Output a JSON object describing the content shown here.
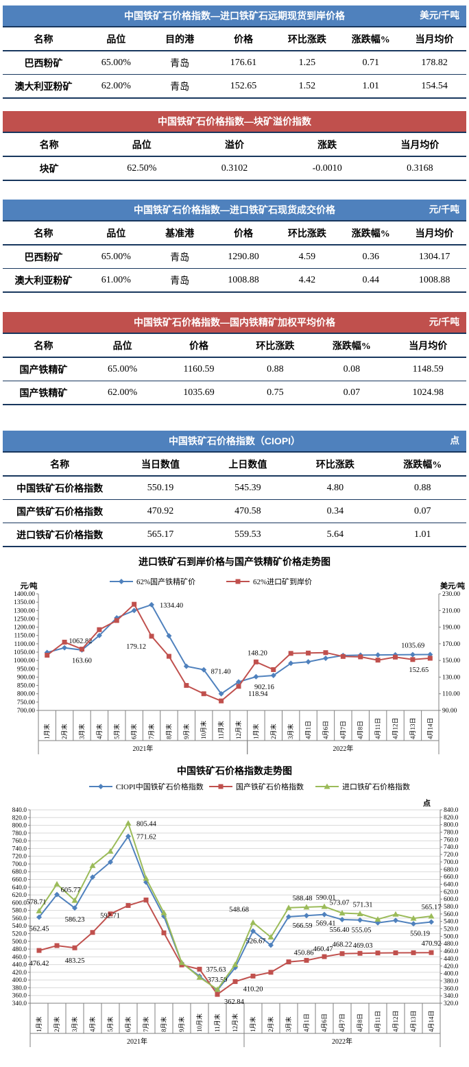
{
  "colors": {
    "header_blue": "#4F81BD",
    "header_red": "#C0504D",
    "table_border_navy": "#17365D",
    "series_blue": "#4F81BD",
    "series_red": "#C0504D",
    "series_green": "#9BBB59",
    "axis_gray": "#7f7f7f",
    "grid_gray": "#d9d9d9"
  },
  "tables": [
    {
      "id": "t1",
      "theme": "blue",
      "cols_class": "cols-7",
      "title": "中国铁矿石价格指数—进口铁矿石远期现货到岸价格",
      "unit": "美元/千吨",
      "columns": [
        "名称",
        "品位",
        "目的港",
        "价格",
        "环比涨跌",
        "涨跌幅%",
        "当月均价"
      ],
      "rows": [
        [
          "巴西粉矿",
          "65.00%",
          "青岛",
          "176.61",
          "1.25",
          "0.71",
          "178.82"
        ],
        [
          "澳大利亚粉矿",
          "62.00%",
          "青岛",
          "152.65",
          "1.52",
          "1.01",
          "154.54"
        ]
      ]
    },
    {
      "id": "t2",
      "theme": "red",
      "cols_class": "cols-5",
      "title": "中国铁矿石价格指数—块矿溢价指数",
      "unit": "",
      "columns": [
        "名称",
        "品位",
        "溢价",
        "涨跌",
        "当月均价"
      ],
      "rows": [
        [
          "块矿",
          "62.50%",
          "0.3102",
          "-0.0010",
          "0.3168"
        ]
      ]
    },
    {
      "id": "t3",
      "theme": "blue",
      "cols_class": "cols-7",
      "title": "中国铁矿石价格指数—进口铁矿石现货成交价格",
      "unit": "元/千吨",
      "columns": [
        "名称",
        "品位",
        "基准港",
        "价格",
        "环比涨跌",
        "涨跌幅%",
        "当月均价"
      ],
      "rows": [
        [
          "巴西粉矿",
          "65.00%",
          "青岛",
          "1290.80",
          "4.59",
          "0.36",
          "1304.17"
        ],
        [
          "澳大利亚粉矿",
          "61.00%",
          "青岛",
          "1008.88",
          "4.42",
          "0.44",
          "1008.88"
        ]
      ]
    },
    {
      "id": "t4",
      "theme": "red",
      "cols_class": "cols-6",
      "title": "中国铁矿石价格指数—国内铁精矿加权平均价格",
      "unit": "元/千吨",
      "columns": [
        "名称",
        "品位",
        "价格",
        "环比涨跌",
        "涨跌幅%",
        "当月均价"
      ],
      "rows": [
        [
          "国产铁精矿",
          "65.00%",
          "1160.59",
          "0.88",
          "0.08",
          "1148.59"
        ],
        [
          "国产铁精矿",
          "62.00%",
          "1035.69",
          "0.75",
          "0.07",
          "1024.98"
        ]
      ]
    },
    {
      "id": "t5",
      "theme": "blue",
      "cols_class": "cols-5w",
      "title": "中国铁矿石价格指数（CIOPI）",
      "unit": "点",
      "columns": [
        "名称",
        "当日数值",
        "上日数值",
        "环比涨跌",
        "涨跌幅%"
      ],
      "rows": [
        [
          "中国铁矿石价格指数",
          "550.19",
          "545.39",
          "4.80",
          "0.88"
        ],
        [
          "国产铁矿石价格指数",
          "470.92",
          "470.58",
          "0.34",
          "0.07"
        ],
        [
          "进口铁矿石价格指数",
          "565.17",
          "559.53",
          "5.64",
          "1.01"
        ]
      ]
    }
  ],
  "chart_data": [
    {
      "type": "line",
      "name": "import-vs-domestic-trend",
      "title": "进口铁矿石到岸价格与国产铁精矿价格走势图",
      "grid": false,
      "left_axis": {
        "label": "元/吨",
        "min": 700,
        "max": 1400,
        "step": 50,
        "decimals": 2
      },
      "right_axis": {
        "label": "美元/吨",
        "min": 90,
        "max": 230,
        "step": 20,
        "decimals": 2
      },
      "categories": [
        "1月末",
        "2月末",
        "3月末",
        "4月末",
        "5月末",
        "6月末",
        "7月末",
        "8月末",
        "9月末",
        "10月末",
        "11月末",
        "12月末",
        "1月末",
        "2月末",
        "3月末",
        "4月1日",
        "4月6日",
        "4月7日",
        "4月8日",
        "4月11日",
        "4月12日",
        "4月13日",
        "4月14日"
      ],
      "year_groups": [
        {
          "label": "2021年",
          "from": 0,
          "to": 11
        },
        {
          "label": "2022年",
          "from": 12,
          "to": 22
        }
      ],
      "series": [
        {
          "name": "62%国产铁精矿价",
          "axis": "left",
          "color": "#4F81BD",
          "label_color": "#4a90d9",
          "marker": "diamond",
          "values": [
            1048,
            1076,
            1062.82,
            1150,
            1256,
            1300,
            1334.4,
            1148,
            965,
            944,
            800,
            871.4,
            902.16,
            910,
            983,
            992,
            1013,
            1030,
            1032,
            1033,
            1034,
            1035,
            1035.69
          ],
          "point_labels": [
            {
              "i": 2,
              "text": "1062.82",
              "dx": -2,
              "dy": -10
            },
            {
              "i": 6,
              "text": "1334.40",
              "dx": 12,
              "dy": 4,
              "anchor": "start"
            },
            {
              "i": 11,
              "text": "871.40",
              "dx": -26,
              "dy": -12
            },
            {
              "i": 12,
              "text": "902.16",
              "dx": 12,
              "dy": 18
            },
            {
              "i": 22,
              "text": "1035.69",
              "dx": -8,
              "dy": -10,
              "anchor": "end"
            }
          ]
        },
        {
          "name": "62%进口矿到岸价",
          "axis": "right",
          "color": "#C0504D",
          "label_color": "#C0504D",
          "marker": "square",
          "values": [
            156.3,
            172,
            163.6,
            187,
            198,
            217.5,
            179.12,
            155,
            120,
            110,
            101.4,
            118.94,
            148.2,
            139,
            158.5,
            158.9,
            159.4,
            154.8,
            154.3,
            150.4,
            154,
            151.1,
            152.65
          ],
          "point_labels": [
            {
              "i": 2,
              "text": "163.60",
              "dx": 0,
              "dy": 20
            },
            {
              "i": 6,
              "text": "179.12",
              "dx": -8,
              "dy": 18,
              "anchor": "end"
            },
            {
              "i": 11,
              "text": "118.94",
              "dx": 14,
              "dy": 14,
              "anchor": "start"
            },
            {
              "i": 12,
              "text": "148.20",
              "dx": 2,
              "dy": -10
            },
            {
              "i": 22,
              "text": "152.65",
              "dx": -2,
              "dy": 20,
              "anchor": "end"
            }
          ]
        }
      ]
    },
    {
      "type": "line",
      "name": "ciopi-index-trend",
      "title": "中国铁矿石价格指数走势图",
      "point_label": "点",
      "grid": true,
      "left_axis": {
        "label": "",
        "min": 340,
        "max": 840,
        "step": 20,
        "decimals": 1
      },
      "right_axis": {
        "label": "",
        "min": 320,
        "max": 840,
        "step": 20,
        "decimals": 1
      },
      "categories": [
        "1月末",
        "2月末",
        "3月末",
        "4月末",
        "5月末",
        "6月末",
        "7月末",
        "8月末",
        "9月末",
        "10月末",
        "11月末",
        "12月末",
        "1月末",
        "2月末",
        "3月末",
        "4月1日",
        "4月6日",
        "4月7日",
        "4月8日",
        "4月11日",
        "4月12日",
        "4月13日",
        "4月14日"
      ],
      "year_groups": [
        {
          "label": "2021年",
          "from": 0,
          "to": 11
        },
        {
          "label": "2022年",
          "from": 12,
          "to": 22
        }
      ],
      "series": [
        {
          "name": "CIOPI中国铁矿石价格指数",
          "axis": "left",
          "color": "#4F81BD",
          "label_color": "#4a90d9",
          "marker": "diamond",
          "values": [
            562.45,
            621,
            586.23,
            666,
            705,
            771.62,
            653,
            565,
            444,
            410,
            373.59,
            432,
            526.67,
            490,
            563.5,
            566.59,
            569.41,
            556.4,
            555.05,
            548,
            554,
            545.39,
            550.19
          ],
          "point_labels": [
            {
              "i": 0,
              "text": "562.45",
              "dx": 0,
              "dy": 20
            },
            {
              "i": 2,
              "text": "586.23",
              "dx": 0,
              "dy": 20
            },
            {
              "i": 5,
              "text": "771.62",
              "dx": 12,
              "dy": 4,
              "anchor": "start"
            },
            {
              "i": 10,
              "text": "373.59",
              "dx": 0,
              "dy": -12
            },
            {
              "i": 12,
              "text": "526.67",
              "dx": 4,
              "dy": 18
            },
            {
              "i": 15,
              "text": "566.59",
              "dx": -6,
              "dy": 18
            },
            {
              "i": 16,
              "text": "569.41",
              "dx": 2,
              "dy": 16
            },
            {
              "i": 17,
              "text": "556.40",
              "dx": -4,
              "dy": 18
            },
            {
              "i": 18,
              "text": "555.05",
              "dx": 2,
              "dy": 18
            },
            {
              "i": 22,
              "text": "550.19",
              "dx": -2,
              "dy": 20,
              "anchor": "end"
            }
          ]
        },
        {
          "name": "国产铁矿石价格指数",
          "axis": "left",
          "color": "#C0504D",
          "label_color": "#C0504D",
          "marker": "square",
          "values": [
            476.42,
            489,
            483.25,
            523,
            571,
            592.71,
            607,
            522,
            439,
            428,
            362.84,
            396,
            410.2,
            420,
            447,
            450.86,
            460.47,
            468.22,
            469.03,
            469.9,
            470.3,
            470.58,
            470.92
          ],
          "point_labels": [
            {
              "i": 0,
              "text": "476.42",
              "dx": 0,
              "dy": 22
            },
            {
              "i": 2,
              "text": "483.25",
              "dx": 0,
              "dy": 22
            },
            {
              "i": 5,
              "text": "592.71",
              "dx": -12,
              "dy": 18,
              "anchor": "end"
            },
            {
              "i": 10,
              "text": "362.84",
              "dx": 10,
              "dy": 14,
              "anchor": "start"
            },
            {
              "i": 12,
              "text": "410.20",
              "dx": 0,
              "dy": 22
            },
            {
              "i": 15,
              "text": "450.86",
              "dx": -4,
              "dy": -8
            },
            {
              "i": 16,
              "text": "460.47",
              "dx": -2,
              "dy": -8
            },
            {
              "i": 17,
              "text": "468.22",
              "dx": 0,
              "dy": -10
            },
            {
              "i": 18,
              "text": "469.03",
              "dx": 4,
              "dy": -8
            },
            {
              "i": 22,
              "text": "470.92",
              "dx": 0,
              "dy": -10
            }
          ]
        },
        {
          "name": "进口铁矿石价格指数",
          "axis": "left",
          "color": "#9BBB59",
          "label_color": "#8ba446",
          "marker": "triangle",
          "values": [
            578.71,
            648,
            605.77,
            696,
            733,
            805.44,
            663,
            574,
            445,
            407,
            375.63,
            440,
            548.68,
            511,
            587,
            588.48,
            590.01,
            573.07,
            571.31,
            557,
            570,
            559.53,
            565.17
          ],
          "point_labels": [
            {
              "i": 0,
              "text": "578.71",
              "dx": -4,
              "dy": -10
            },
            {
              "i": 2,
              "text": "605.77",
              "dx": -6,
              "dy": -12
            },
            {
              "i": 5,
              "text": "805.44",
              "dx": 12,
              "dy": 4,
              "anchor": "start"
            },
            {
              "i": 10,
              "text": "375.63",
              "dx": -2,
              "dy": -26
            },
            {
              "i": 12,
              "text": "548.68",
              "dx": -6,
              "dy": -16,
              "anchor": "end"
            },
            {
              "i": 15,
              "text": "588.48",
              "dx": -6,
              "dy": -10
            },
            {
              "i": 16,
              "text": "590.01",
              "dx": 2,
              "dy": -10
            },
            {
              "i": 17,
              "text": "573.07",
              "dx": -4,
              "dy": -12
            },
            {
              "i": 18,
              "text": "571.31",
              "dx": 4,
              "dy": -10
            },
            {
              "i": 22,
              "text": "565.17",
              "dx": 0,
              "dy": -10
            }
          ]
        }
      ]
    }
  ]
}
